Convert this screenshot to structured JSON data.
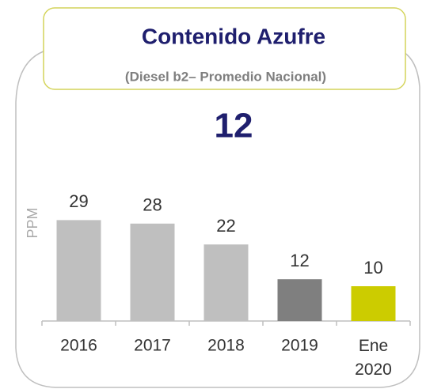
{
  "chart_data": {
    "type": "bar",
    "title": "Contenido Azufre",
    "subtitle": "(Diesel b2– Promedio Nacional)",
    "annotation": "12",
    "y_label": "PPM",
    "categories": [
      "2016",
      "2017",
      "2018",
      "2019",
      "Ene 2020"
    ],
    "values": [
      29,
      28,
      22,
      12,
      10
    ],
    "colors": [
      "#bfbfbf",
      "#bfbfbf",
      "#bfbfbf",
      "#7f7f7f",
      "#cccc00"
    ],
    "ylim": [
      0,
      30
    ]
  }
}
